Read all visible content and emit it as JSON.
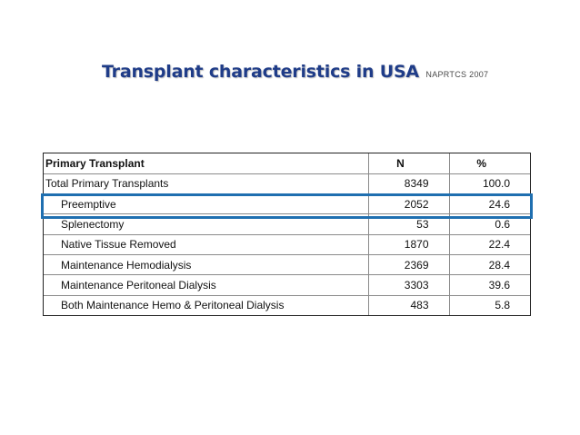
{
  "slide": {
    "title": "Transplant characteristics in USA",
    "source": "NAPRTCS 2007",
    "highlight_color": "#1f6fb0",
    "title_color": "#1f3c88"
  },
  "table": {
    "header": {
      "label": "Primary Transplant",
      "n": "N",
      "pct": "%"
    },
    "rows": [
      {
        "label": "Total Primary Transplants",
        "n": "8349",
        "pct": "100.0"
      },
      {
        "label": "Preemptive",
        "n": "2052",
        "pct": "24.6"
      },
      {
        "label": "Splenectomy",
        "n": "53",
        "pct": "0.6"
      },
      {
        "label": "Native Tissue Removed",
        "n": "1870",
        "pct": "22.4"
      },
      {
        "label": "Maintenance Hemodialysis",
        "n": "2369",
        "pct": "28.4"
      },
      {
        "label": "Maintenance Peritoneal Dialysis",
        "n": "3303",
        "pct": "39.6"
      },
      {
        "label": "Both Maintenance Hemo & Peritoneal Dialysis",
        "n": "483",
        "pct": "5.8"
      }
    ],
    "highlighted_row": "Preemptive"
  }
}
